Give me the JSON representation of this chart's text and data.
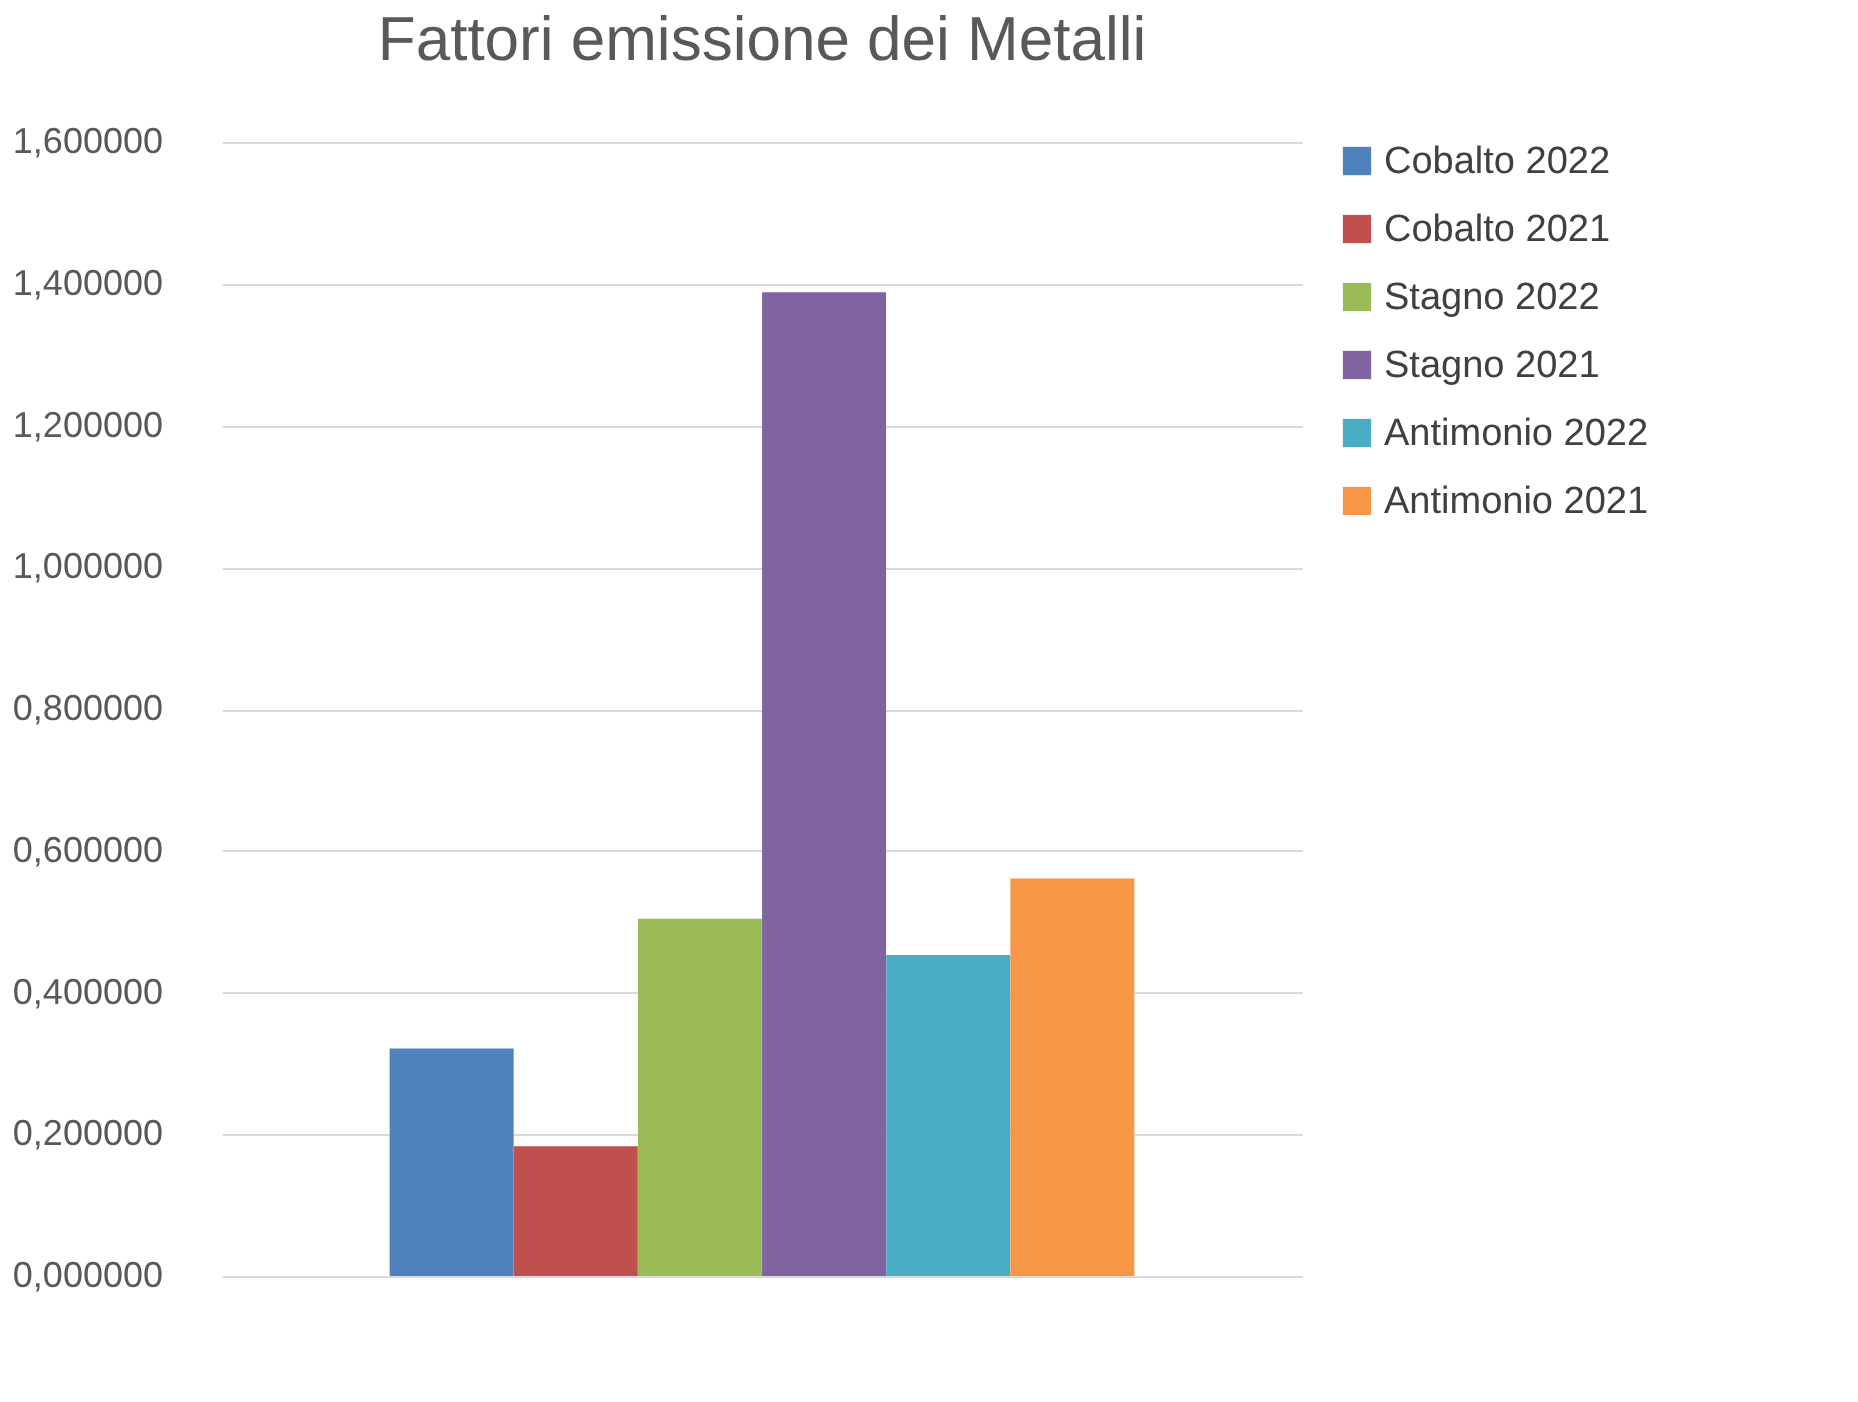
{
  "chart_data": {
    "type": "bar",
    "title": "Fattori emissione dei Metalli",
    "categories": [
      null
    ],
    "series": [
      {
        "name": "Cobalto 2022",
        "color": "#4f81bd",
        "values": [
          0.321
        ]
      },
      {
        "name": "Cobalto 2021",
        "color": "#c0504d",
        "values": [
          0.183
        ]
      },
      {
        "name": "Stagno 2022",
        "color": "#9bbb59",
        "values": [
          0.504
        ]
      },
      {
        "name": "Stagno 2021",
        "color": "#8064a2",
        "values": [
          1.388
        ]
      },
      {
        "name": "Antimonio 2022",
        "color": "#4bacc6",
        "values": [
          0.453
        ]
      },
      {
        "name": "Antimonio 2021",
        "color": "#f79646",
        "values": [
          0.561
        ]
      }
    ],
    "ylim": [
      0,
      1.6
    ],
    "yticks": [
      {
        "value": 0,
        "label": "0,000000"
      },
      {
        "value": 0.2,
        "label": "0,200000"
      },
      {
        "value": 0.4,
        "label": "0,400000"
      },
      {
        "value": 0.6,
        "label": "0,600000"
      },
      {
        "value": 0.8,
        "label": "0,800000"
      },
      {
        "value": 1.0,
        "label": "1,000000"
      },
      {
        "value": 1.2,
        "label": "1,200000"
      },
      {
        "value": 1.4,
        "label": "1,400000"
      },
      {
        "value": 1.6,
        "label": "1,600000"
      }
    ],
    "grid": "y",
    "legend": "right"
  }
}
